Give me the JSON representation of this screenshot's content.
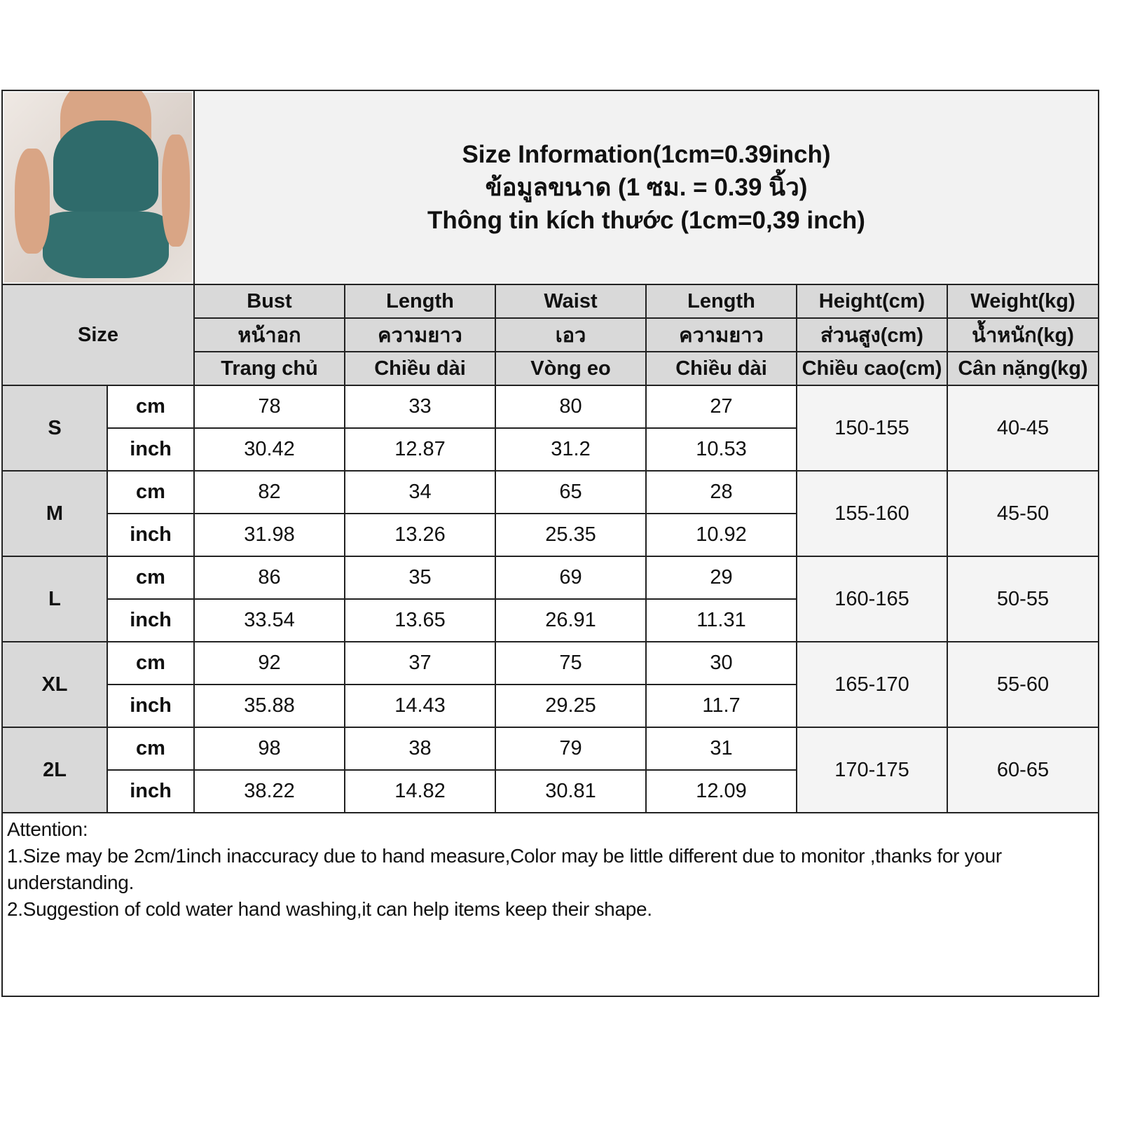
{
  "title": {
    "line1": "Size Information(1cm=0.39inch)",
    "line2": "ข้อมูลขนาด (1 ซม. = 0.39 นิ้ว)",
    "line3": "Thông tin kích thước (1cm=0,39 inch)"
  },
  "size_label": "Size",
  "columns": [
    {
      "en": "Bust",
      "th": "หน้าอก",
      "vi": "Trang chủ"
    },
    {
      "en": "Length",
      "th": "ความยาว",
      "vi": "Chiều dài"
    },
    {
      "en": "Waist",
      "th": "เอว",
      "vi": "Vòng eo"
    },
    {
      "en": "Length",
      "th": "ความยาว",
      "vi": "Chiều dài"
    },
    {
      "en": "Height(cm)",
      "th": "ส่วนสูง(cm)",
      "vi": "Chiều cao(cm)"
    },
    {
      "en": "Weight(kg)",
      "th": "น้ำหนัก(kg)",
      "vi": "Cân nặng(kg)"
    }
  ],
  "units": {
    "cm": "cm",
    "inch": "inch"
  },
  "rows": [
    {
      "size": "S",
      "cm": [
        "78",
        "33",
        "80",
        "27"
      ],
      "inch": [
        "30.42",
        "12.87",
        "31.2",
        "10.53"
      ],
      "height": "150-155",
      "weight": "40-45"
    },
    {
      "size": "M",
      "cm": [
        "82",
        "34",
        "65",
        "28"
      ],
      "inch": [
        "31.98",
        "13.26",
        "25.35",
        "10.92"
      ],
      "height": "155-160",
      "weight": "45-50"
    },
    {
      "size": "L",
      "cm": [
        "86",
        "35",
        "69",
        "29"
      ],
      "inch": [
        "33.54",
        "13.65",
        "26.91",
        "11.31"
      ],
      "height": "160-165",
      "weight": "50-55"
    },
    {
      "size": "XL",
      "cm": [
        "92",
        "37",
        "75",
        "30"
      ],
      "inch": [
        "35.88",
        "14.43",
        "29.25",
        "11.7"
      ],
      "height": "165-170",
      "weight": "55-60"
    },
    {
      "size": "2L",
      "cm": [
        "98",
        "38",
        "79",
        "31"
      ],
      "inch": [
        "38.22",
        "14.82",
        "30.81",
        "12.09"
      ],
      "height": "170-175",
      "weight": "60-65"
    }
  ],
  "attention": {
    "heading": "Attention:",
    "note1": "1.Size may be 2cm/1inch inaccuracy due to hand measure,Color may be little different due to monitor ,thanks for your understanding.",
    "note2": "2.Suggestion of cold water hand washing,it can help items keep their shape."
  }
}
